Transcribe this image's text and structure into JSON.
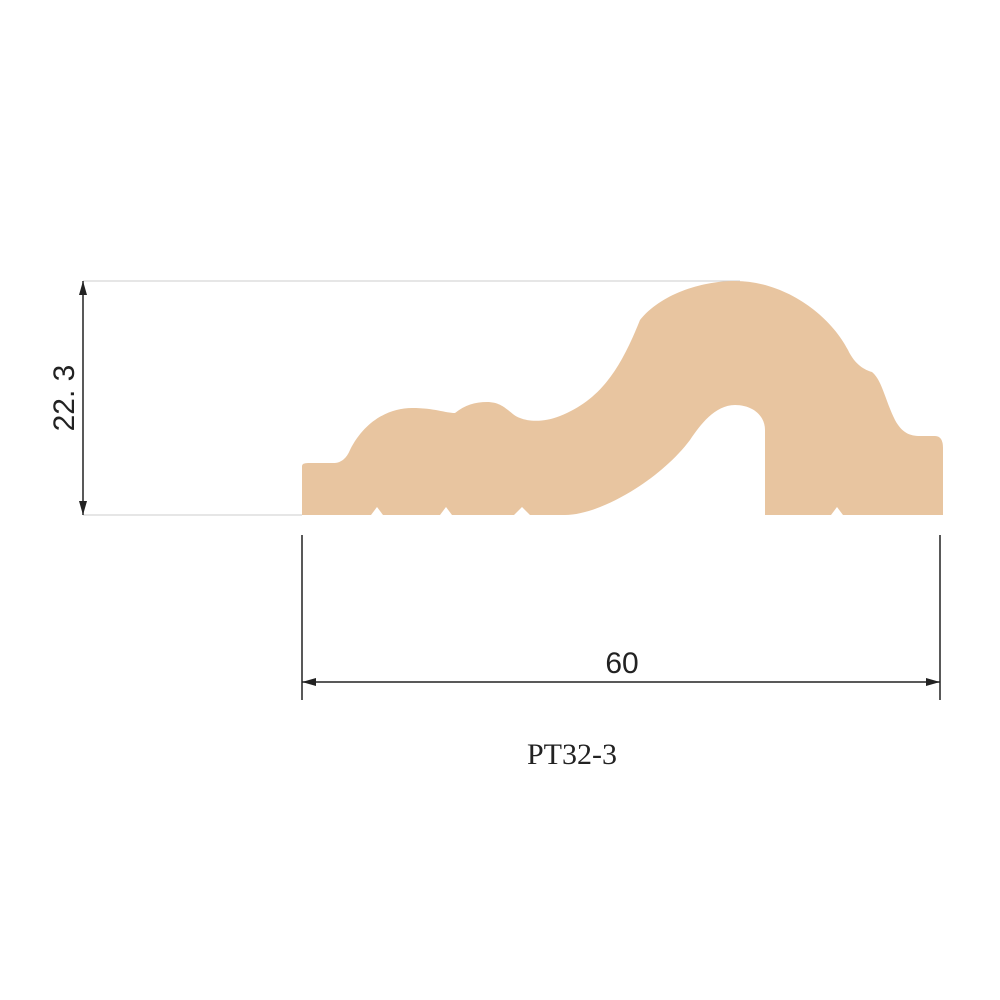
{
  "dimensions": {
    "height": "22. 3",
    "width": "60"
  },
  "profile": {
    "code": "PT32-3"
  }
}
